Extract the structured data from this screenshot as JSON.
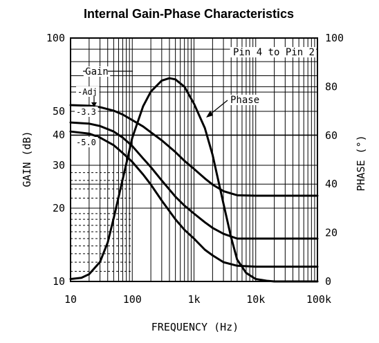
{
  "chart_data": {
    "type": "line",
    "title": "Internal Gain-Phase Characteristics",
    "xlabel": "FREQUENCY (Hz)",
    "ylabel": "GAIN (dB)",
    "y2label": "PHASE (°)",
    "x_scale": "log",
    "y_scale": "log",
    "xlim": [
      10,
      100000
    ],
    "ylim": [
      10,
      100
    ],
    "y2lim": [
      0,
      100
    ],
    "x_ticks": [
      "10",
      "100",
      "1k",
      "10k",
      "100k"
    ],
    "y_ticks": [
      "100",
      "50",
      "40",
      "30",
      "20",
      "10"
    ],
    "y2_ticks": [
      "100",
      "80",
      "60",
      "40",
      "20",
      "0"
    ],
    "grid": true,
    "annotations": {
      "pin": "Pin 4 to Pin 2",
      "gain": "Gain",
      "phase": "Phase"
    },
    "series": [
      {
        "name": "-Adj",
        "axis": "gain",
        "x": [
          10,
          20,
          30,
          50,
          70,
          100,
          150,
          200,
          300,
          500,
          700,
          1000,
          1500,
          2000,
          3000,
          5000,
          10000,
          20000,
          100000
        ],
        "values": [
          53,
          52.7,
          52,
          50.3,
          48.5,
          46,
          43.3,
          41,
          38,
          34,
          31.3,
          29,
          26.5,
          25,
          23.5,
          22.6,
          22.5,
          22.5,
          22.5
        ]
      },
      {
        "name": "-3.3",
        "axis": "gain",
        "x": [
          10,
          20,
          30,
          50,
          70,
          100,
          150,
          200,
          300,
          500,
          700,
          1000,
          1500,
          2000,
          3000,
          5000,
          7000,
          10000,
          100000
        ],
        "values": [
          45,
          44.5,
          43.5,
          41.3,
          39,
          36,
          32,
          29.5,
          26,
          22.3,
          20.5,
          19,
          17.5,
          16.6,
          15.7,
          15,
          15,
          15,
          15
        ]
      },
      {
        "name": "-5.0",
        "axis": "gain",
        "x": [
          10,
          20,
          30,
          50,
          70,
          100,
          150,
          200,
          300,
          500,
          700,
          1000,
          1500,
          2000,
          3000,
          5000,
          10000,
          100000
        ],
        "values": [
          41.3,
          40.5,
          39,
          36.3,
          33.7,
          31,
          27.5,
          25,
          21.5,
          18,
          16.3,
          15,
          13.5,
          12.8,
          12,
          11.6,
          11.5,
          11.5
        ]
      },
      {
        "name": "Phase",
        "axis": "phase",
        "x": [
          10,
          15,
          20,
          30,
          40,
          50,
          70,
          100,
          150,
          200,
          300,
          400,
          500,
          700,
          1000,
          1500,
          2000,
          3000,
          4000,
          5000,
          7000,
          10000,
          15000,
          20000,
          100000
        ],
        "values": [
          1,
          1.5,
          3,
          8,
          16,
          26,
          42,
          59,
          72,
          78,
          82.5,
          83.5,
          83,
          80,
          73,
          63,
          52,
          32,
          18,
          9,
          3.5,
          1,
          0.3,
          0,
          0
        ]
      }
    ]
  }
}
